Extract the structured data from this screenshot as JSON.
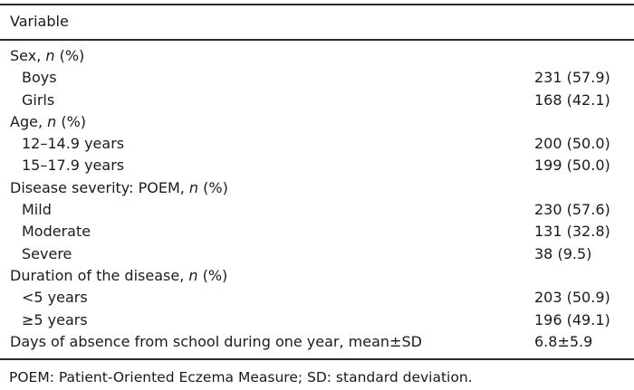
{
  "table": {
    "header": "Variable",
    "rows": [
      {
        "pre": "Sex, ",
        "italic": "n",
        "post": " (%)",
        "value": "",
        "indent": 0
      },
      {
        "pre": "Boys",
        "italic": "",
        "post": "",
        "value": "231 (57.9)",
        "indent": 1
      },
      {
        "pre": "Girls",
        "italic": "",
        "post": "",
        "value": "168 (42.1)",
        "indent": 1
      },
      {
        "pre": "Age, ",
        "italic": "n",
        "post": " (%)",
        "value": "",
        "indent": 0
      },
      {
        "pre": "12–14.9 years",
        "italic": "",
        "post": "",
        "value": "200 (50.0)",
        "indent": 1
      },
      {
        "pre": "15–17.9 years",
        "italic": "",
        "post": "",
        "value": "199 (50.0)",
        "indent": 1
      },
      {
        "pre": "Disease severity: POEM, ",
        "italic": "n",
        "post": " (%)",
        "value": "",
        "indent": 0
      },
      {
        "pre": "Mild",
        "italic": "",
        "post": "",
        "value": "230 (57.6)",
        "indent": 1
      },
      {
        "pre": "Moderate",
        "italic": "",
        "post": "",
        "value": "131 (32.8)",
        "indent": 1
      },
      {
        "pre": "Severe",
        "italic": "",
        "post": "",
        "value": "38 (9.5)",
        "indent": 1
      },
      {
        "pre": "Duration of the disease, ",
        "italic": "n",
        "post": " (%)",
        "value": "",
        "indent": 0
      },
      {
        "pre": "<5 years",
        "italic": "",
        "post": "",
        "value": "203 (50.9)",
        "indent": 1
      },
      {
        "pre": "≥5 years",
        "italic": "",
        "post": "",
        "value": "196 (49.1)",
        "indent": 1
      },
      {
        "pre": "Days of absence from school during one year, mean±SD",
        "italic": "",
        "post": "",
        "value": "6.8±5.9",
        "indent": 0
      }
    ],
    "footnote": "POEM: Patient-Oriented Eczema Measure; SD: standard deviation.",
    "colors": {
      "text": "#1b1b1b",
      "rule": "#2b2b2b",
      "background": "#ffffff"
    }
  }
}
